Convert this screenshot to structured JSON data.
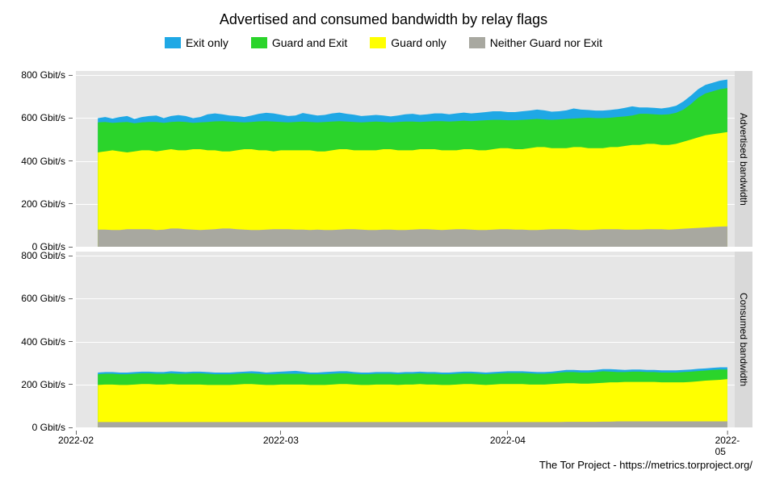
{
  "title": "Advertised and consumed bandwidth by relay flags",
  "attribution": "The Tor Project - https://metrics.torproject.org/",
  "background_color": "#ffffff",
  "panel_bg": "#e6e6e6",
  "strip_bg": "#d9d9d9",
  "grid_color": "#ffffff",
  "tick_color": "#666666",
  "text_color": "#000000",
  "title_fontsize": 18,
  "tick_fontsize": 12,
  "legend_fontsize": 14,
  "legend": [
    {
      "label": "Exit only",
      "color": "#1fa8e5"
    },
    {
      "label": "Guard and Exit",
      "color": "#2bd42b"
    },
    {
      "label": "Guard only",
      "color": "#ffff00"
    },
    {
      "label": "Neither Guard nor Exit",
      "color": "#a8a8a0"
    }
  ],
  "y": {
    "min": 0,
    "max": 820,
    "ticks": [
      0,
      200,
      400,
      600,
      800
    ],
    "suffix": " Gbit/s"
  },
  "x": {
    "min": 0,
    "max": 90,
    "data_start": 3,
    "data_end": 89,
    "ticks": [
      {
        "pos": 0,
        "label": "2022-02"
      },
      {
        "pos": 28,
        "label": "2022-03"
      },
      {
        "pos": 59,
        "label": "2022-04"
      },
      {
        "pos": 89,
        "label": "2022-05"
      }
    ]
  },
  "panels": [
    {
      "strip_label": "Advertised bandwidth",
      "series": {
        "neither": [
          80,
          80,
          78,
          78,
          82,
          82,
          82,
          82,
          78,
          80,
          85,
          85,
          82,
          80,
          78,
          80,
          82,
          85,
          85,
          82,
          80,
          78,
          78,
          80,
          82,
          82,
          82,
          80,
          80,
          78,
          80,
          78,
          78,
          80,
          82,
          82,
          80,
          78,
          78,
          80,
          80,
          78,
          78,
          80,
          82,
          82,
          80,
          78,
          80,
          82,
          82,
          80,
          78,
          78,
          80,
          82,
          82,
          80,
          80,
          78,
          78,
          80,
          82,
          82,
          82,
          80,
          78,
          78,
          80,
          82,
          82,
          82,
          80,
          80,
          80,
          82,
          82,
          82,
          80,
          82,
          84,
          86,
          88,
          90,
          92,
          94,
          95
        ],
        "guard_only": [
          440,
          445,
          450,
          445,
          440,
          445,
          450,
          450,
          445,
          450,
          455,
          450,
          450,
          455,
          455,
          450,
          450,
          445,
          445,
          450,
          455,
          455,
          450,
          450,
          445,
          450,
          450,
          450,
          450,
          450,
          445,
          445,
          450,
          455,
          455,
          450,
          450,
          450,
          450,
          455,
          455,
          450,
          450,
          450,
          455,
          455,
          455,
          450,
          450,
          450,
          455,
          455,
          450,
          450,
          455,
          460,
          460,
          455,
          455,
          460,
          465,
          465,
          460,
          460,
          460,
          465,
          465,
          460,
          460,
          460,
          465,
          465,
          470,
          475,
          475,
          480,
          480,
          475,
          475,
          480,
          490,
          500,
          510,
          520,
          525,
          530,
          535
        ],
        "guard_exit": [
          580,
          582,
          578,
          580,
          582,
          576,
          580,
          582,
          582,
          578,
          582,
          584,
          582,
          578,
          580,
          582,
          585,
          586,
          584,
          582,
          580,
          582,
          585,
          586,
          584,
          582,
          580,
          582,
          584,
          582,
          580,
          582,
          584,
          586,
          584,
          582,
          580,
          582,
          584,
          582,
          580,
          582,
          584,
          584,
          582,
          584,
          586,
          586,
          584,
          586,
          588,
          586,
          588,
          590,
          592,
          592,
          590,
          590,
          592,
          594,
          596,
          594,
          592,
          594,
          596,
          598,
          600,
          602,
          600,
          600,
          602,
          605,
          608,
          612,
          620,
          620,
          618,
          616,
          618,
          625,
          640,
          665,
          695,
          715,
          725,
          735,
          740
        ],
        "exit_only": [
          600,
          605,
          598,
          605,
          610,
          596,
          605,
          610,
          612,
          600,
          610,
          614,
          610,
          600,
          605,
          618,
          622,
          618,
          612,
          610,
          605,
          612,
          620,
          625,
          622,
          616,
          610,
          612,
          624,
          618,
          612,
          615,
          622,
          626,
          620,
          616,
          610,
          612,
          615,
          612,
          608,
          612,
          618,
          620,
          615,
          618,
          622,
          622,
          618,
          622,
          626,
          622,
          625,
          628,
          632,
          632,
          628,
          628,
          632,
          635,
          640,
          636,
          630,
          632,
          636,
          645,
          640,
          638,
          635,
          635,
          638,
          642,
          648,
          655,
          650,
          650,
          648,
          645,
          650,
          658,
          678,
          705,
          735,
          755,
          765,
          775,
          780
        ]
      }
    },
    {
      "strip_label": "Consumed bandwidth",
      "series": {
        "neither": [
          25,
          25,
          25,
          25,
          25,
          25,
          25,
          25,
          25,
          25,
          25,
          25,
          25,
          25,
          25,
          25,
          25,
          25,
          25,
          25,
          25,
          25,
          25,
          25,
          25,
          25,
          25,
          25,
          25,
          25,
          25,
          25,
          25,
          25,
          25,
          25,
          25,
          25,
          25,
          25,
          25,
          25,
          25,
          25,
          25,
          25,
          25,
          25,
          25,
          25,
          25,
          25,
          25,
          25,
          25,
          25,
          25,
          25,
          25,
          25,
          25,
          25,
          25,
          25,
          26,
          26,
          26,
          26,
          26,
          27,
          27,
          28,
          28,
          28,
          28,
          28,
          28,
          28,
          28,
          28,
          28,
          28,
          28,
          28,
          28,
          28,
          28
        ],
        "guard_only": [
          198,
          200,
          200,
          198,
          198,
          200,
          202,
          202,
          200,
          200,
          202,
          200,
          200,
          200,
          200,
          198,
          198,
          198,
          198,
          200,
          202,
          202,
          200,
          198,
          198,
          200,
          200,
          200,
          200,
          198,
          198,
          198,
          200,
          202,
          202,
          200,
          198,
          198,
          200,
          200,
          200,
          198,
          200,
          200,
          202,
          200,
          200,
          198,
          198,
          200,
          202,
          202,
          200,
          198,
          200,
          202,
          202,
          202,
          202,
          200,
          200,
          200,
          202,
          204,
          206,
          206,
          204,
          204,
          206,
          208,
          210,
          210,
          212,
          212,
          212,
          212,
          212,
          210,
          210,
          210,
          210,
          212,
          215,
          218,
          220,
          222,
          225
        ],
        "guard_exit": [
          248,
          250,
          250,
          248,
          248,
          250,
          252,
          252,
          250,
          250,
          252,
          250,
          250,
          252,
          252,
          250,
          248,
          248,
          248,
          250,
          252,
          252,
          250,
          248,
          248,
          250,
          250,
          250,
          250,
          248,
          248,
          248,
          250,
          252,
          252,
          250,
          248,
          248,
          250,
          250,
          250,
          248,
          250,
          250,
          252,
          250,
          250,
          248,
          248,
          250,
          252,
          252,
          250,
          248,
          250,
          252,
          254,
          254,
          254,
          252,
          250,
          250,
          252,
          256,
          258,
          258,
          256,
          256,
          258,
          262,
          260,
          258,
          258,
          260,
          260,
          258,
          258,
          256,
          256,
          256,
          258,
          260,
          263,
          265,
          268,
          270,
          270
        ],
        "exit_only": [
          256,
          258,
          258,
          256,
          256,
          258,
          260,
          260,
          258,
          258,
          262,
          260,
          258,
          260,
          260,
          258,
          256,
          256,
          256,
          258,
          260,
          262,
          260,
          256,
          258,
          260,
          262,
          264,
          260,
          256,
          256,
          258,
          260,
          262,
          262,
          258,
          256,
          256,
          258,
          258,
          258,
          256,
          258,
          258,
          260,
          258,
          258,
          256,
          256,
          258,
          260,
          260,
          258,
          256,
          258,
          260,
          262,
          262,
          262,
          260,
          258,
          258,
          260,
          264,
          268,
          268,
          266,
          266,
          268,
          272,
          272,
          270,
          268,
          270,
          270,
          268,
          268,
          266,
          266,
          266,
          268,
          270,
          273,
          275,
          278,
          280,
          280
        ]
      }
    }
  ]
}
